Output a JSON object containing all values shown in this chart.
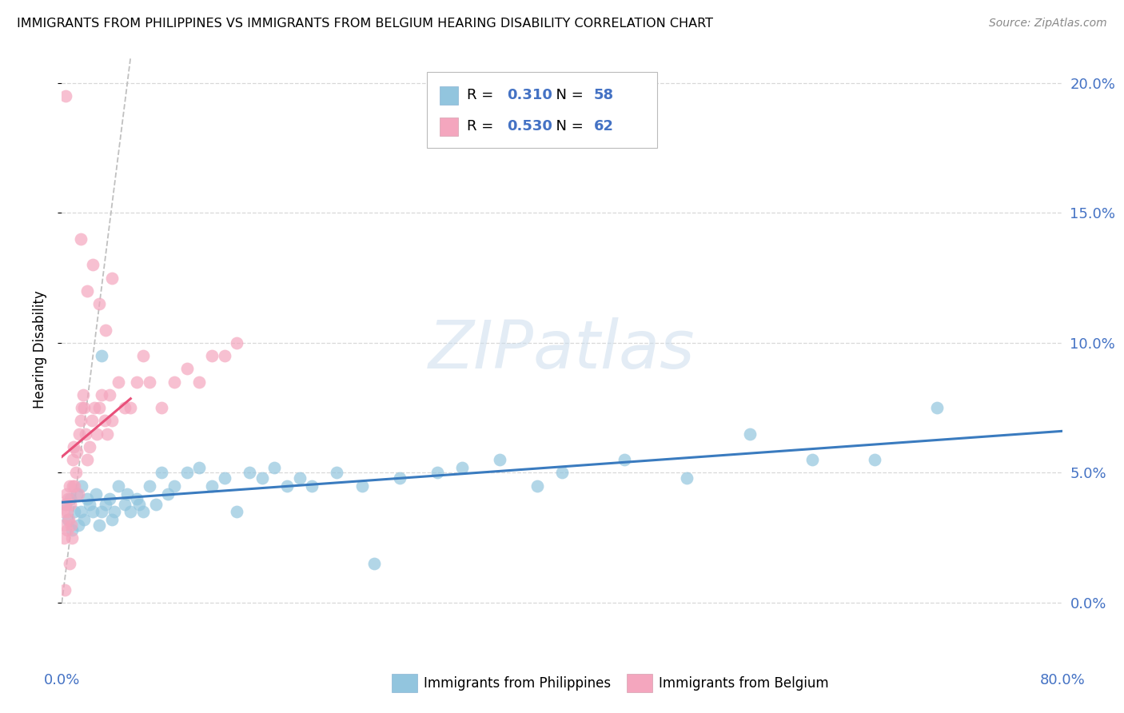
{
  "title": "IMMIGRANTS FROM PHILIPPINES VS IMMIGRANTS FROM BELGIUM HEARING DISABILITY CORRELATION CHART",
  "source": "Source: ZipAtlas.com",
  "ylabel": "Hearing Disability",
  "legend_blue_R": "0.310",
  "legend_blue_N": "58",
  "legend_pink_R": "0.530",
  "legend_pink_N": "62",
  "legend_blue_label": "Immigrants from Philippines",
  "legend_pink_label": "Immigrants from Belgium",
  "watermark": "ZIPatlas",
  "blue_scatter_color": "#92c5de",
  "pink_scatter_color": "#f4a6be",
  "blue_line_color": "#3a7bbf",
  "pink_line_color": "#e8507a",
  "dashed_line_color": "#c0c0c0",
  "grid_color": "#d8d8d8",
  "right_tick_color": "#4472c4",
  "philippines_x": [
    0.3,
    0.5,
    0.7,
    0.8,
    1.0,
    1.2,
    1.3,
    1.5,
    1.6,
    1.8,
    2.0,
    2.2,
    2.5,
    2.7,
    3.0,
    3.2,
    3.5,
    3.8,
    4.0,
    4.2,
    4.5,
    5.0,
    5.2,
    5.5,
    6.0,
    6.2,
    6.5,
    7.0,
    7.5,
    8.0,
    8.5,
    9.0,
    10.0,
    11.0,
    12.0,
    13.0,
    14.0,
    15.0,
    16.0,
    17.0,
    18.0,
    19.0,
    20.0,
    22.0,
    24.0,
    25.0,
    27.0,
    30.0,
    32.0,
    35.0,
    38.0,
    40.0,
    45.0,
    50.0,
    55.0,
    60.0,
    65.0,
    70.0
  ],
  "philippines_y": [
    3.8,
    3.2,
    4.0,
    2.8,
    3.5,
    4.2,
    3.0,
    3.5,
    4.5,
    3.2,
    4.0,
    3.8,
    3.5,
    4.2,
    3.0,
    3.5,
    3.8,
    4.0,
    3.2,
    3.5,
    4.5,
    3.8,
    4.2,
    3.5,
    4.0,
    3.8,
    3.5,
    4.5,
    3.8,
    5.0,
    4.2,
    4.5,
    5.0,
    5.2,
    4.5,
    4.8,
    3.5,
    5.0,
    4.8,
    5.2,
    4.5,
    4.8,
    4.5,
    5.0,
    4.5,
    1.5,
    4.8,
    5.0,
    5.2,
    5.5,
    4.5,
    5.0,
    5.5,
    4.8,
    6.5,
    5.5,
    5.5,
    7.5
  ],
  "philippines_outlier_x": [
    3.2
  ],
  "philippines_outlier_y": [
    9.5
  ],
  "belgium_x": [
    0.1,
    0.15,
    0.2,
    0.25,
    0.3,
    0.35,
    0.4,
    0.45,
    0.5,
    0.55,
    0.6,
    0.65,
    0.7,
    0.75,
    0.8,
    0.85,
    0.9,
    0.95,
    1.0,
    1.1,
    1.2,
    1.3,
    1.4,
    1.5,
    1.6,
    1.7,
    1.8,
    1.9,
    2.0,
    2.2,
    2.4,
    2.6,
    2.8,
    3.0,
    3.2,
    3.4,
    3.6,
    3.8,
    4.0,
    4.5,
    5.0,
    5.5,
    6.0,
    6.5,
    7.0,
    8.0,
    9.0,
    10.0,
    11.0,
    12.0,
    13.0,
    14.0
  ],
  "belgium_y": [
    3.5,
    3.0,
    2.5,
    0.5,
    3.8,
    4.2,
    3.5,
    2.8,
    4.0,
    3.2,
    1.5,
    4.5,
    3.8,
    3.0,
    2.5,
    5.5,
    4.5,
    6.0,
    4.5,
    5.0,
    5.8,
    4.2,
    6.5,
    7.0,
    7.5,
    8.0,
    7.5,
    6.5,
    5.5,
    6.0,
    7.0,
    7.5,
    6.5,
    7.5,
    8.0,
    7.0,
    6.5,
    8.0,
    7.0,
    8.5,
    7.5,
    7.5,
    8.5,
    9.5,
    8.5,
    7.5,
    8.5,
    9.0,
    8.5,
    9.5,
    9.5,
    10.0
  ],
  "belgium_outlier_x": [
    1.5,
    2.0,
    2.5,
    3.0,
    3.5,
    4.0
  ],
  "belgium_outlier_y": [
    14.0,
    12.0,
    13.0,
    11.5,
    10.5,
    12.5
  ],
  "belgium_high_x": [
    0.3
  ],
  "belgium_high_y": [
    19.5
  ],
  "xmin": 0.0,
  "xmax": 80.0,
  "ymin": -1.5,
  "ymax": 21.0,
  "yticks": [
    0.0,
    5.0,
    10.0,
    15.0,
    20.0
  ],
  "ytick_labels": [
    "0.0%",
    "5.0%",
    "10.0%",
    "15.0%",
    "20.0%"
  ]
}
